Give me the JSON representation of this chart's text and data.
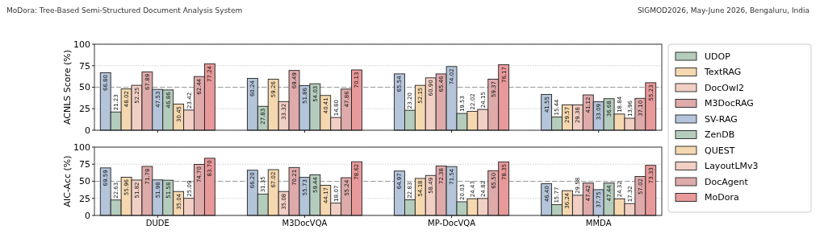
{
  "chart_data": [
    {
      "type": "bar",
      "ylabel": "ACNLS Score (%)",
      "categories": [
        "DUDE",
        "M3DocVQA",
        "MP-DocVQA",
        "MMDA"
      ],
      "ylim": [
        0,
        100
      ],
      "yticks": [
        0,
        25,
        50,
        75,
        100
      ],
      "grid": "y",
      "legend": "right",
      "tick_labels": "y",
      "annotations": [
        "MoDora: Tree-Based Semi-Structured Document Analysis System",
        "SIGMOD2026, May-June 2026, Bengaluru, India"
      ],
      "ref_lines": [
        {
          "axis": "y",
          "value": 50,
          "color": "#999999",
          "line_style": "dashed"
        }
      ],
      "series": [
        {
          "color": "#b4c4da",
          "values": [
            66.8,
            60.24,
            65.54,
            41.55
          ],
          "value_labels": [
            "66.80",
            "60.24",
            "65.54",
            "41.55"
          ]
        },
        {
          "name": "UDOP",
          "color": "#b4ccbc",
          "values": [
            21.23,
            27.83,
            23.2,
            15.44
          ],
          "value_labels": [
            "21.23",
            "27.83",
            "23.20",
            "15.44"
          ]
        },
        {
          "name": "TextRAG",
          "color": "#f5d8b0",
          "values": [
            48.02,
            59.26,
            52.15,
            29.57
          ],
          "value_labels": [
            "48.02",
            "59.26",
            "52.15",
            "29.57"
          ]
        },
        {
          "name": "DocOwl2",
          "color": "#f2cfc4",
          "values": [
            52.25,
            33.32,
            60.9,
            29.38
          ],
          "value_labels": [
            "52.25",
            "33.32",
            "60.90",
            "29.38"
          ]
        },
        {
          "name": "M3DocRAG",
          "color": "#dfaaaa",
          "values": [
            67.89,
            69.49,
            65.46,
            41.12
          ],
          "value_labels": [
            "67.89",
            "69.49",
            "65.46",
            "41.12"
          ]
        },
        {
          "name": "SV-RAG",
          "color": "#b4c4da",
          "values": [
            47.53,
            51.86,
            74.02,
            33.09
          ],
          "value_labels": [
            "47.53",
            "51.86",
            "74.02",
            "33.09"
          ]
        },
        {
          "name": "ZenDB",
          "color": "#b4ccbc",
          "values": [
            46.86,
            54.03,
            19.53,
            36.68
          ],
          "value_labels": [
            "46.86",
            "54.03",
            "19.53",
            "36.68"
          ]
        },
        {
          "name": "QUEST",
          "color": "#f5d8b0",
          "values": [
            30.45,
            40.41,
            22.02,
            18.84
          ],
          "value_labels": [
            "30.45",
            "40.41",
            "22.02",
            "18.84"
          ]
        },
        {
          "name": "LayoutLMv3",
          "color": "#f2cfc4",
          "values": [
            23.42,
            14.8,
            24.15,
            13.96
          ],
          "value_labels": [
            "23.42",
            "14.80",
            "24.15",
            "13.96"
          ]
        },
        {
          "name": "DocAgent",
          "color": "#dfaaaa",
          "values": [
            62.44,
            47.86,
            59.37,
            37.1
          ],
          "value_labels": [
            "62.44",
            "47.86",
            "59.37",
            "37.10"
          ]
        },
        {
          "name": "MoDora",
          "color": "#e8999a",
          "values": [
            77.24,
            70.13,
            76.17,
            55.23
          ],
          "value_labels": [
            "77.24",
            "70.13",
            "76.17",
            "55.23"
          ]
        }
      ]
    },
    {
      "type": "bar",
      "ylabel": "AIC-Acc (%)",
      "categories": [
        "DUDE",
        "M3DocVQA",
        "MP-DocVQA",
        "MMDA"
      ],
      "ylim": [
        0,
        100
      ],
      "yticks": [
        0,
        25,
        50,
        75,
        100
      ],
      "grid": "y",
      "ref_lines": [
        {
          "axis": "y",
          "value": 50,
          "color": "#999999",
          "line_style": "dashed"
        }
      ],
      "series": [
        {
          "color": "#b4c4da",
          "values": [
            69.59,
            66.2,
            64.97,
            46.4
          ],
          "value_labels": [
            "69.59",
            "66.20",
            "64.97",
            "46.40"
          ]
        },
        {
          "name": "UDOP",
          "color": "#b4ccbc",
          "values": [
            22.63,
            31.35,
            22.83,
            15.77
          ],
          "value_labels": [
            "22.63",
            "31.35",
            "22.83",
            "15.77"
          ]
        },
        {
          "name": "TextRAG",
          "color": "#f5d8b0",
          "values": [
            55.96,
            67.02,
            54.18,
            36.24
          ],
          "value_labels": [
            "55.96",
            "67.02",
            "54.18",
            "36.24"
          ]
        },
        {
          "name": "DocOwl2",
          "color": "#f2cfc4",
          "values": [
            51.82,
            35.08,
            58.49,
            29.58
          ],
          "value_labels": [
            "51.82",
            "35.08",
            "58.49",
            "29.58"
          ]
        },
        {
          "name": "M3DocRAG",
          "color": "#dfaaaa",
          "values": [
            71.78,
            70.21,
            72.38,
            47.42
          ],
          "value_labels": [
            "71.78",
            "70.21",
            "72.38",
            "47.42"
          ]
        },
        {
          "name": "SV-RAG",
          "color": "#b4c4da",
          "values": [
            51.98,
            55.73,
            71.54,
            37.75
          ],
          "value_labels": [
            "51.98",
            "55.73",
            "71.54",
            "37.75"
          ]
        },
        {
          "name": "ZenDB",
          "color": "#b4ccbc",
          "values": [
            51.58,
            59.44,
            20.03,
            47.44
          ],
          "value_labels": [
            "51.58",
            "59.44",
            "20.03",
            "47.44"
          ]
        },
        {
          "name": "QUEST",
          "color": "#f5d8b0",
          "values": [
            35.04,
            44.17,
            24.47,
            24.32
          ],
          "value_labels": [
            "35.04",
            "44.17",
            "24.47",
            "24.32"
          ]
        },
        {
          "name": "LayoutLMv3",
          "color": "#f2cfc4",
          "values": [
            25.09,
            18.07,
            24.82,
            17.32
          ],
          "value_labels": [
            "25.09",
            "18.07",
            "24.82",
            "17.32"
          ]
        },
        {
          "name": "DocAgent",
          "color": "#dfaaaa",
          "values": [
            74.7,
            55.24,
            65.5,
            57.02
          ],
          "value_labels": [
            "74.70",
            "55.24",
            "65.50",
            "57.02"
          ]
        },
        {
          "name": "MoDora",
          "color": "#e8999a",
          "values": [
            83.7,
            78.62,
            78.35,
            73.33
          ],
          "value_labels": [
            "83.70",
            "78.62",
            "78.35",
            "73.33"
          ]
        }
      ]
    }
  ]
}
